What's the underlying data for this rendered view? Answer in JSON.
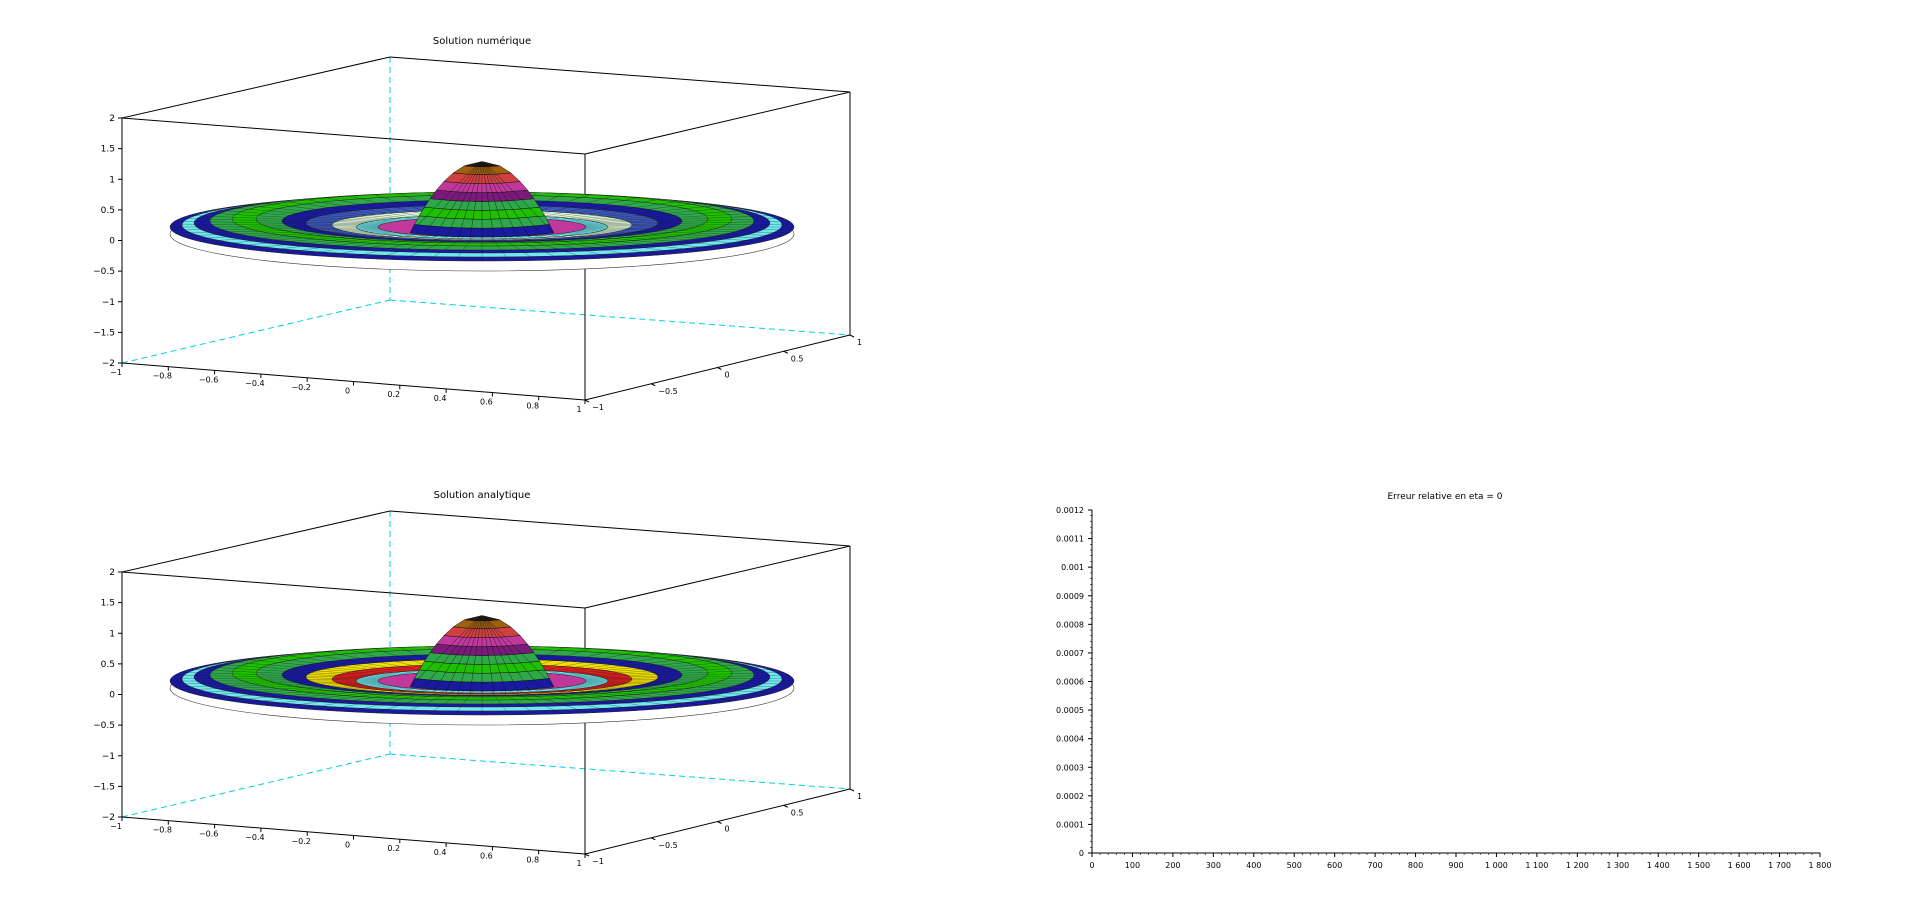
{
  "chart_data": [
    {
      "id": "numeric",
      "type": "surface3d",
      "title": "Solution numérique",
      "zticks": [
        "2",
        "1.5",
        "1",
        "0.5",
        "0",
        "−0.5",
        "−1",
        "−1.5",
        "−2"
      ],
      "xticks": [
        "−1",
        "−0.8",
        "−0.6",
        "−0.4",
        "−0.2",
        "0",
        "0.2",
        "0.4",
        "0.6",
        "0.8",
        "1"
      ],
      "yticks": [
        "−1",
        "−0.5",
        "0",
        "0.5",
        "1"
      ],
      "xlim": [
        -1,
        1
      ],
      "ylim": [
        -1,
        1
      ],
      "zlim": [
        -2,
        2
      ],
      "peak_z": 1.2,
      "ring_color_sequence": [
        "#1a1aa0",
        "#6fe8ee",
        "#2fa84a",
        "#1fc000",
        "#3c58b8",
        "#d8f0d0",
        "#c0389c",
        "#7c1a7c",
        "#d04040",
        "#a06010"
      ]
    },
    {
      "id": "analytic",
      "type": "surface3d",
      "title": "Solution analytique",
      "zticks": [
        "2",
        "1.5",
        "1",
        "0.5",
        "0",
        "−0.5",
        "−1",
        "−1.5",
        "−2"
      ],
      "xticks": [
        "−1",
        "−0.8",
        "−0.6",
        "−0.4",
        "−0.2",
        "0",
        "0.2",
        "0.4",
        "0.6",
        "0.8",
        "1"
      ],
      "yticks": [
        "−1",
        "−0.5",
        "0",
        "0.5",
        "1"
      ],
      "xlim": [
        -1,
        1
      ],
      "ylim": [
        -1,
        1
      ],
      "zlim": [
        -2,
        2
      ],
      "peak_z": 1.2,
      "ring_color_sequence": [
        "#1a1aa0",
        "#6fe8ee",
        "#2fa84a",
        "#1fc000",
        "#f0e000",
        "#e02020",
        "#c0389c",
        "#7c1a7c",
        "#d04040",
        "#a06010"
      ]
    },
    {
      "id": "error",
      "type": "line",
      "title": "Erreur relative en eta = 0",
      "xlabel": "",
      "ylabel": "",
      "xlim": [
        0,
        1800
      ],
      "ylim": [
        0,
        0.0012
      ],
      "xticks": [
        "0",
        "100",
        "200",
        "300",
        "400",
        "500",
        "600",
        "700",
        "800",
        "900",
        "1 000",
        "1 100",
        "1 200",
        "1 300",
        "1 400",
        "1 500",
        "1 600",
        "1 700",
        "1 800"
      ],
      "yticks": [
        "0",
        "0.0001",
        "0.0002",
        "0.0003",
        "0.0004",
        "0.0005",
        "0.0006",
        "0.0007",
        "0.0008",
        "0.0009",
        "0.001",
        "0.0011",
        "0.0012"
      ],
      "series": []
    }
  ]
}
